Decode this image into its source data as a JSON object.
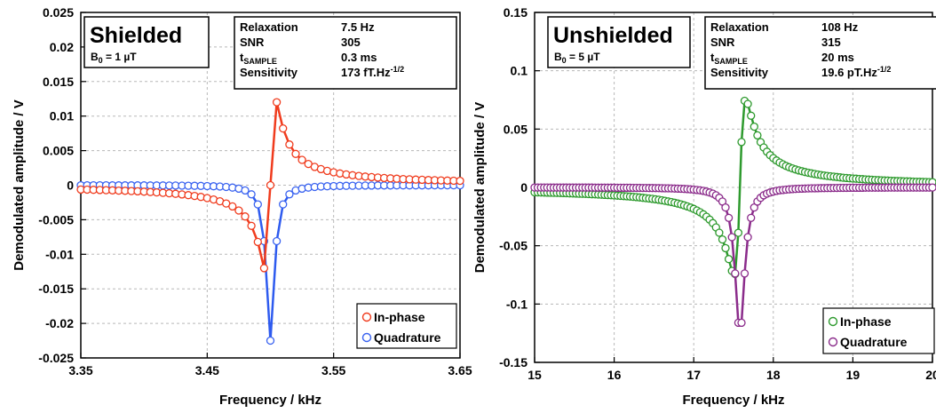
{
  "chart_data": [
    {
      "type": "scatter",
      "xlabel": "Frequency / kHz",
      "ylabel": "Demodulated amplitude / V",
      "xlim": [
        3.35,
        3.65
      ],
      "ylim": [
        -0.025,
        0.025
      ],
      "x_ticks": [
        "3.35",
        "3.45",
        "3.55",
        "3.65"
      ],
      "y_ticks": [
        "0.025",
        "0.02",
        "0.015",
        "0.01",
        "0.005",
        "0",
        "-0.005",
        "-0.01",
        "-0.015",
        "-0.02",
        "-0.025"
      ],
      "grid": true,
      "legend_position": "bottom-right",
      "label_box": {
        "title": "Shielded",
        "sub_main": "B",
        "sub_sub": "0",
        "sub_rest": " = 1 µT"
      },
      "info_table": [
        {
          "label": "Relaxation",
          "value": "7.5 Hz"
        },
        {
          "label": "SNR",
          "value": "305"
        },
        {
          "label": "t",
          "label_sub": "SAMPLE",
          "value": "0.3 ms"
        },
        {
          "label": "Sensitivity",
          "value": "173 fT.Hz",
          "value_sup": "-1/2"
        }
      ],
      "series": [
        {
          "name": "In-phase",
          "color": "#f03c1e",
          "line_color": "#f03c1e"
        },
        {
          "name": "Quadrature",
          "color": "#3a63f0",
          "line_color": "#2e5bef"
        }
      ],
      "model": {
        "f0": 3.5,
        "width": 0.00375,
        "in_amp": 0.0125,
        "quad_amp": 0.0225,
        "step": 0.005
      }
    },
    {
      "type": "scatter",
      "xlabel": "Frequency / kHz",
      "ylabel": "Demodulated amplitude / V",
      "xlim": [
        15,
        20
      ],
      "ylim": [
        -0.15,
        0.15
      ],
      "x_ticks": [
        "15",
        "16",
        "17",
        "18",
        "19",
        "20"
      ],
      "y_ticks": [
        "0.15",
        "0.1",
        "0.05",
        "0",
        "-0.05",
        "-0.1",
        "-0.15"
      ],
      "grid": true,
      "legend_position": "bottom-right",
      "label_box": {
        "title": "Unshielded",
        "sub_main": "B",
        "sub_sub": "0",
        "sub_rest": " = 5 µT"
      },
      "info_table": [
        {
          "label": "Relaxation",
          "value": "108 Hz"
        },
        {
          "label": "SNR",
          "value": "315"
        },
        {
          "label": "t",
          "label_sub": "SAMPLE",
          "value": "20 ms"
        },
        {
          "label": "Sensitivity",
          "value": "19.6 pT.Hz",
          "value_sup": "-1/2"
        }
      ],
      "series": [
        {
          "name": "In-phase",
          "color": "#2e9a2e",
          "line_color": "#2e9a2e"
        },
        {
          "name": "Quadrature",
          "color": "#8b2c8b",
          "line_color": "#8b2c8b"
        }
      ],
      "model": {
        "f0": 17.58,
        "width": 0.072,
        "in_amp": 0.0755,
        "quad_amp": 0.125,
        "step": 0.04
      }
    }
  ]
}
